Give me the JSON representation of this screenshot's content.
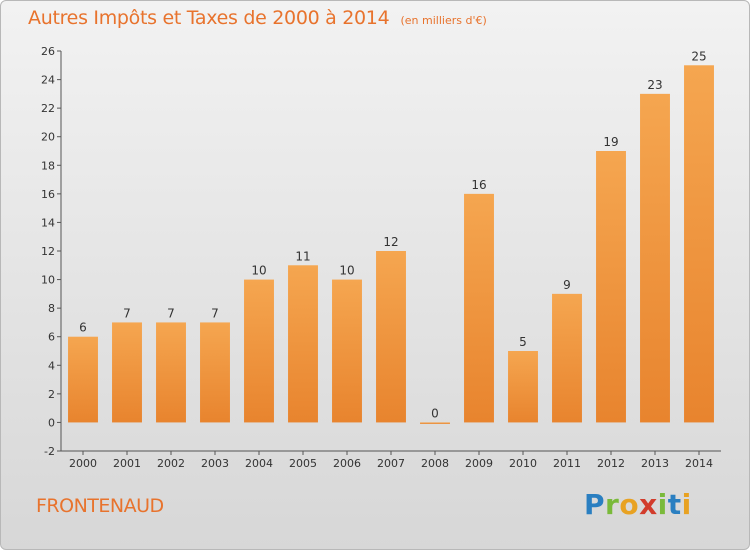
{
  "title": "Autres Impôts et Taxes de 2000 à 2014",
  "subtitle": "(en milliers d'€)",
  "commune": "FRONTENAUD",
  "logo": {
    "letters": [
      "P",
      "r",
      "o",
      "x",
      "i",
      "t",
      "i"
    ],
    "colors": [
      "#2a7fc1",
      "#7aba3a",
      "#e8a222",
      "#d23c2c",
      "#7aba3a",
      "#2a7fc1",
      "#e8a222"
    ]
  },
  "colors": {
    "bar": "#e8842e",
    "bar_light": "#f5a650",
    "accent": "#e8732d"
  },
  "chart_data": {
    "type": "bar",
    "categories": [
      "2000",
      "2001",
      "2002",
      "2003",
      "2004",
      "2005",
      "2006",
      "2007",
      "2008",
      "2009",
      "2010",
      "2011",
      "2012",
      "2013",
      "2014"
    ],
    "values": [
      6,
      7,
      7,
      7,
      10,
      11,
      10,
      12,
      0,
      16,
      5,
      9,
      19,
      23,
      25
    ],
    "title": "Autres Impôts et Taxes de 2000 à 2014",
    "subtitle": "(en milliers d'€)",
    "xlabel": "",
    "ylabel": "",
    "ylim": [
      -2,
      26
    ],
    "yticks": [
      -2,
      0,
      2,
      4,
      6,
      8,
      10,
      12,
      14,
      16,
      18,
      20,
      22,
      24,
      26
    ],
    "grid": false
  }
}
